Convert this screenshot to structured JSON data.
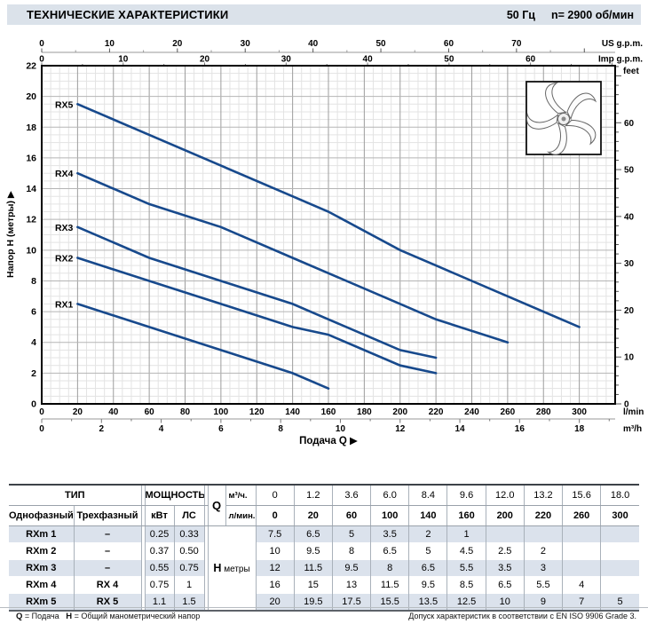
{
  "header": {
    "title": "ТЕХНИЧЕСКИЕ ХАРАКТЕРИСТИКИ",
    "frequency": "50 Гц",
    "speed": "n= 2900 об/мин"
  },
  "chart_data": {
    "type": "line",
    "x_unit": "l/min",
    "xlim": [
      0,
      320
    ],
    "ylim": [
      0,
      22
    ],
    "grid": "on",
    "x_label": "Подача Q ▶",
    "line_color": "#17498c",
    "axes": {
      "top_us": {
        "label": "US g.p.m.",
        "ticks": [
          0,
          10,
          20,
          30,
          40,
          50,
          60,
          70
        ],
        "minor_step": 5,
        "lmin_per_unit": 3.785
      },
      "top_imp": {
        "label": "Imp g.p.m.",
        "ticks": [
          0,
          10,
          20,
          30,
          40,
          50,
          60
        ],
        "minor_step": 5,
        "lmin_per_unit": 4.546
      },
      "bottom_lmin": {
        "label": "l/min",
        "ticks": [
          0,
          20,
          40,
          60,
          80,
          100,
          120,
          140,
          160,
          180,
          200,
          220,
          240,
          260,
          280,
          300
        ]
      },
      "bottom_m3h": {
        "label": "m³/h",
        "ticks": [
          0,
          2,
          4,
          6,
          8,
          10,
          12,
          14,
          16,
          18
        ],
        "minor_step": 1,
        "lmin_per_unit": 16.667
      },
      "left": {
        "label": "Напор Н (метры) ▶",
        "ticks": [
          0,
          2,
          4,
          6,
          8,
          10,
          12,
          14,
          16,
          18,
          20,
          22
        ],
        "minor_step": 0.5
      },
      "right": {
        "label": "feet",
        "ticks": [
          0,
          10,
          20,
          30,
          40,
          50,
          60
        ],
        "minor_step": 2,
        "m_per_unit": 0.3048
      }
    },
    "series": [
      {
        "name": "RX1",
        "x": [
          20,
          60,
          100,
          140,
          160
        ],
        "y": [
          6.5,
          5,
          3.5,
          2,
          1
        ]
      },
      {
        "name": "RX2",
        "x": [
          20,
          60,
          100,
          140,
          160,
          200,
          220
        ],
        "y": [
          9.5,
          8,
          6.5,
          5,
          4.5,
          2.5,
          2
        ]
      },
      {
        "name": "RX3",
        "x": [
          20,
          60,
          100,
          140,
          160,
          200,
          220
        ],
        "y": [
          11.5,
          9.5,
          8,
          6.5,
          5.5,
          3.5,
          3
        ]
      },
      {
        "name": "RX4",
        "x": [
          20,
          60,
          100,
          140,
          160,
          200,
          220,
          260
        ],
        "y": [
          15,
          13,
          11.5,
          9.5,
          8.5,
          6.5,
          5.5,
          4
        ]
      },
      {
        "name": "RX5",
        "x": [
          20,
          60,
          100,
          140,
          160,
          200,
          220,
          260,
          300
        ],
        "y": [
          19.5,
          17.5,
          15.5,
          13.5,
          12.5,
          10,
          9,
          7,
          5
        ]
      }
    ]
  },
  "table": {
    "type_header": "ТИП",
    "power_header": "МОЩНОСТЬ",
    "col_single": "Однофазный",
    "col_three": "Трехфазный",
    "col_kw": "кВт",
    "col_hp": "ЛС",
    "q_label": "Q",
    "q_unit_top": "м³/ч.",
    "q_unit_bottom": "л/мин.",
    "h_label_sym": "Н",
    "h_label_rest": "метры",
    "q_m3h": [
      "0",
      "1.2",
      "3.6",
      "6.0",
      "8.4",
      "9.6",
      "12.0",
      "13.2",
      "15.6",
      "18.0"
    ],
    "q_lmin": [
      "0",
      "20",
      "60",
      "100",
      "140",
      "160",
      "200",
      "220",
      "260",
      "300"
    ],
    "rows": [
      {
        "single": "RXm 1",
        "three": "–",
        "kw": "0.25",
        "hp": "0.33",
        "h": [
          "7.5",
          "6.5",
          "5",
          "3.5",
          "2",
          "1",
          "",
          "",
          "",
          ""
        ]
      },
      {
        "single": "RXm 2",
        "three": "–",
        "kw": "0.37",
        "hp": "0.50",
        "h": [
          "10",
          "9.5",
          "8",
          "6.5",
          "5",
          "4.5",
          "2.5",
          "2",
          "",
          ""
        ]
      },
      {
        "single": "RXm 3",
        "three": "–",
        "kw": "0.55",
        "hp": "0.75",
        "h": [
          "12",
          "11.5",
          "9.5",
          "8",
          "6.5",
          "5.5",
          "3.5",
          "3",
          "",
          ""
        ]
      },
      {
        "single": "RXm 4",
        "three": "RX 4",
        "kw": "0.75",
        "hp": "1",
        "h": [
          "16",
          "15",
          "13",
          "11.5",
          "9.5",
          "8.5",
          "6.5",
          "5.5",
          "4",
          ""
        ]
      },
      {
        "single": "RXm 5",
        "three": "RX 5",
        "kw": "1.1",
        "hp": "1.5",
        "h": [
          "20",
          "19.5",
          "17.5",
          "15.5",
          "13.5",
          "12.5",
          "10",
          "9",
          "7",
          "5"
        ]
      }
    ]
  },
  "footer": {
    "q_sym": "Q",
    "q_rest": "= Подача",
    "h_sym": "H",
    "h_rest": "= Общий манометрический напор",
    "right": "Допуск характеристик в соответствии с EN ISO 9906 Grade 3."
  }
}
